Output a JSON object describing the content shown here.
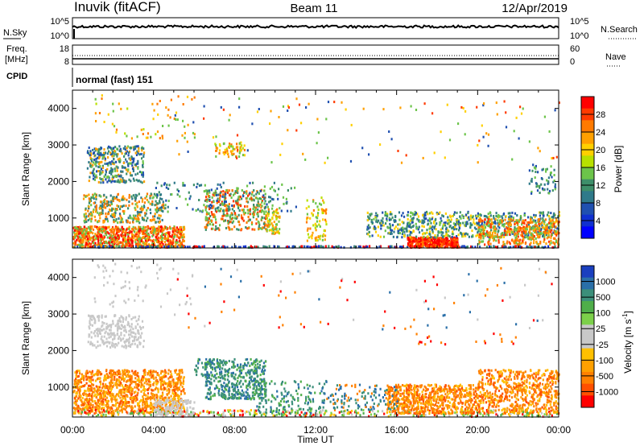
{
  "header": {
    "station": "Inuvik (fitACF)",
    "beam": "Beam 11",
    "date": "12/Apr/2019"
  },
  "noise_panel": {
    "left_label": "N.Sky",
    "right_label": "N.Search",
    "left_ticks": [
      "10^5",
      "10^0"
    ],
    "right_ticks": [
      "10^5",
      "10^0"
    ]
  },
  "freq_panel": {
    "left_label_1": "Freq.",
    "left_label_2": "[MHz]",
    "left_ticks": [
      "18",
      "8"
    ],
    "right_ticks": [
      "60",
      "0"
    ],
    "right_label": "Nave"
  },
  "cpid_panel": {
    "label": "CPID",
    "value": "normal (fast) 151"
  },
  "chart_data": [
    {
      "type": "heatmap",
      "ylabel": "Slant Range [km]",
      "yticks": [
        1000,
        2000,
        3000,
        4000
      ],
      "ylim": [
        180,
        4500
      ],
      "xlim": [
        0,
        24
      ],
      "colorbar": {
        "label": "Power [dB]",
        "ticks": [
          "28",
          "24",
          "20",
          "16",
          "12",
          "8",
          "4"
        ],
        "colors": [
          "#ff0000",
          "#ff3a00",
          "#ff7a00",
          "#ffa000",
          "#ffd000",
          "#b8e000",
          "#6cc44a",
          "#3e8f6a",
          "#2f7a8a",
          "#2050b0",
          "#1030d0",
          "#0000ff"
        ]
      }
    },
    {
      "type": "heatmap",
      "ylabel": "Slant Range [km]",
      "yticks": [
        1000,
        2000,
        3000,
        4000
      ],
      "ylim": [
        180,
        4500
      ],
      "xlim": [
        0,
        24
      ],
      "colorbar": {
        "label": "Velocity [m s^-1]",
        "ticks": [
          "1000",
          "500",
          "100",
          "25",
          "-25",
          "-100",
          "-500",
          "-1000"
        ],
        "colors": [
          "#1a3fbf",
          "#2a6fa8",
          "#3c8f7a",
          "#4fae4a",
          "#7cd04a",
          "#c8c8c8",
          "#c8c8c8",
          "#ffc000",
          "#ffa000",
          "#ff8000",
          "#ff5000",
          "#ff0000"
        ]
      }
    }
  ],
  "x_axis": {
    "ticks": [
      "00:00",
      "04:00",
      "08:00",
      "12:00",
      "16:00",
      "20:00",
      "00:00"
    ],
    "label": "Time UT"
  }
}
